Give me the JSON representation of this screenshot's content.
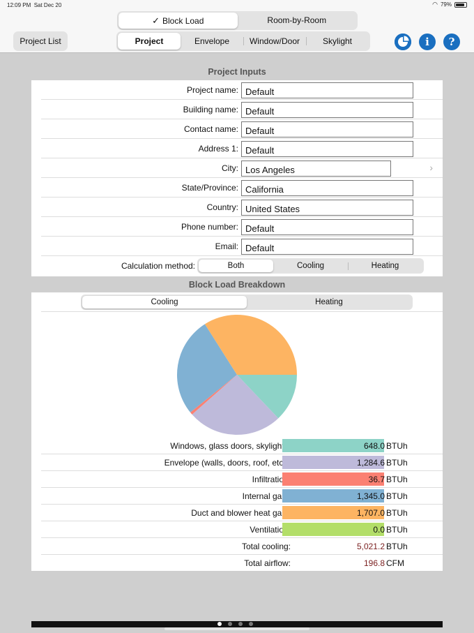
{
  "status": {
    "time": "12:09 PM",
    "date": "Sat Dec 20",
    "battery": "79%"
  },
  "mode_toggle": {
    "options": [
      "Block Load",
      "Room-by-Room"
    ],
    "selected_check": "✓"
  },
  "toolbar": {
    "project_list_label": "Project List",
    "tabs": [
      "Project",
      "Envelope",
      "Window/Door",
      "Skylight"
    ],
    "icons": [
      "pie-chart-icon",
      "info-icon",
      "help-icon"
    ],
    "info_glyph": "i",
    "help_glyph": "?"
  },
  "project_inputs": {
    "title": "Project Inputs",
    "fields": [
      {
        "label": "Project name:",
        "value": "Default"
      },
      {
        "label": "Building name:",
        "value": "Default"
      },
      {
        "label": "Contact name:",
        "value": "Default"
      },
      {
        "label": "Address 1:",
        "value": "Default"
      },
      {
        "label": "City:",
        "value": "Los Angeles"
      },
      {
        "label": "State/Province:",
        "value": "California"
      },
      {
        "label": "Country:",
        "value": "United States"
      },
      {
        "label": "Phone number:",
        "value": "Default"
      },
      {
        "label": "Email:",
        "value": "Default"
      }
    ],
    "calc_label": "Calculation method:",
    "calc_options": [
      "Both",
      "Cooling",
      "Heating"
    ]
  },
  "breakdown": {
    "title": "Block Load Breakdown",
    "options": [
      "Cooling",
      "Heating"
    ],
    "rows": [
      {
        "label": "Windows, glass doors, skylights:",
        "value": "648.0",
        "unit": "BTUh",
        "color": "#8dd3c7"
      },
      {
        "label": "Envelope (walls, doors, roof, etc.):",
        "value": "1,284.6",
        "unit": "BTUh",
        "color": "#bebada"
      },
      {
        "label": "Infiltration:",
        "value": "36.7",
        "unit": "BTUh",
        "color": "#fb8072"
      },
      {
        "label": "Internal gain:",
        "value": "1,345.0",
        "unit": "BTUh",
        "color": "#80b1d3"
      },
      {
        "label": "Duct and blower heat gain:",
        "value": "1,707.0",
        "unit": "BTUh",
        "color": "#fdb462"
      },
      {
        "label": "Ventilation:",
        "value": "0.0",
        "unit": "BTUh",
        "color": "#b3de69"
      }
    ],
    "totals": [
      {
        "label": "Total cooling:",
        "value": "5,021.2",
        "unit": "BTUh"
      },
      {
        "label": "Total airflow:",
        "value": "196.8",
        "unit": "CFM"
      }
    ]
  },
  "chart_data": {
    "type": "pie",
    "categories": [
      "Windows, glass doors, skylights",
      "Envelope (walls, doors, roof, etc.)",
      "Infiltration",
      "Internal gain",
      "Duct and blower heat gain",
      "Ventilation"
    ],
    "values": [
      648.0,
      1284.6,
      36.7,
      1345.0,
      1707.0,
      0.0
    ],
    "colors": [
      "#8dd3c7",
      "#bebada",
      "#fb8072",
      "#80b1d3",
      "#fdb462",
      "#b3de69"
    ],
    "title": ""
  }
}
